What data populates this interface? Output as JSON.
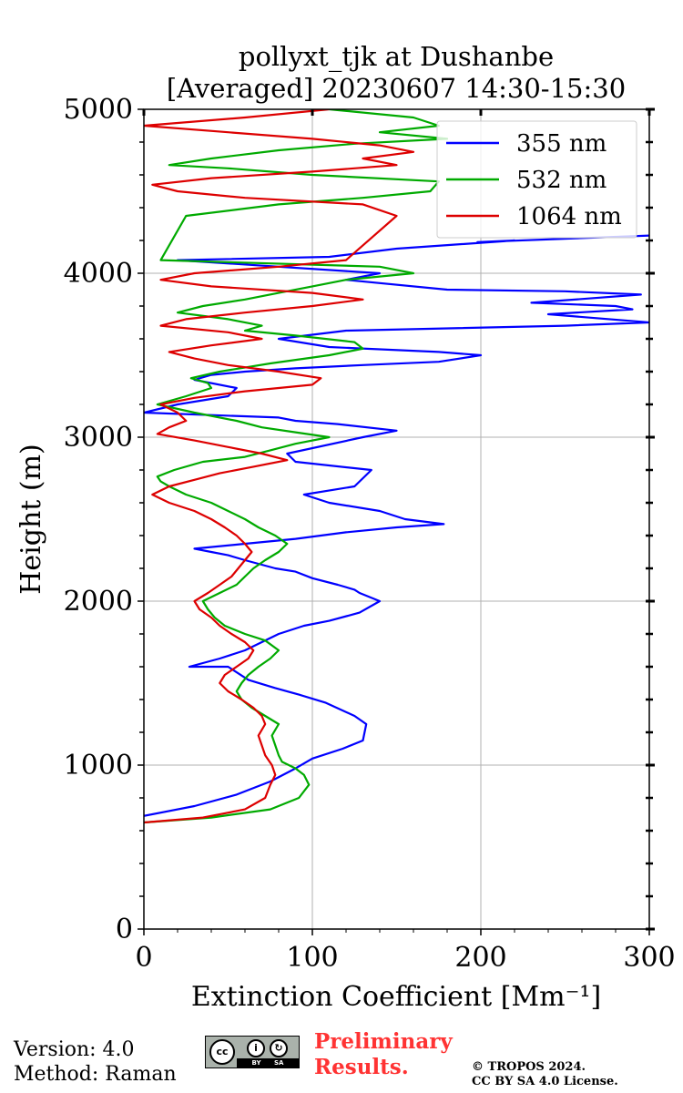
{
  "chart_data": {
    "type": "line",
    "title_line1": "pollyxt_tjk at Dushanbe",
    "title_line2": "[Averaged] 20230607 14:30-15:30",
    "xlabel": "Extinction Coefficient [Mm⁻¹]",
    "ylabel": "Height (m)",
    "xlim": [
      0,
      300
    ],
    "ylim": [
      0,
      5000
    ],
    "xticks": [
      0,
      100,
      200,
      300
    ],
    "yticks": [
      0,
      1000,
      2000,
      3000,
      4000,
      5000
    ],
    "grid": true,
    "legend_position": "top-right",
    "series": [
      {
        "name": "355 nm",
        "color": "#0000ff",
        "x": [
          0,
          30,
          55,
          75,
          90,
          100,
          118,
          130,
          132,
          125,
          108,
          92,
          78,
          62,
          50,
          27,
          45,
          60,
          70,
          80,
          95,
          110,
          128,
          140,
          128,
          125,
          115,
          100,
          90,
          78,
          60,
          50,
          40,
          30,
          60,
          90,
          120,
          150,
          178,
          155,
          140,
          110,
          95,
          125,
          135,
          90,
          85,
          130,
          150,
          115,
          90,
          80,
          0,
          20,
          50,
          55,
          30,
          40,
          60,
          90,
          130,
          175,
          200,
          175,
          110,
          80,
          120,
          250,
          300,
          240,
          290,
          280,
          230,
          295,
          250,
          180,
          120,
          140,
          20,
          110,
          150,
          220,
          198,
          300
        ],
        "y": [
          690,
          750,
          820,
          900,
          980,
          1040,
          1100,
          1150,
          1250,
          1300,
          1380,
          1430,
          1470,
          1520,
          1600,
          1600,
          1650,
          1700,
          1750,
          1800,
          1850,
          1880,
          1930,
          2000,
          2050,
          2070,
          2100,
          2140,
          2180,
          2200,
          2250,
          2280,
          2300,
          2320,
          2350,
          2380,
          2420,
          2450,
          2470,
          2500,
          2550,
          2600,
          2650,
          2700,
          2800,
          2850,
          2900,
          3000,
          3040,
          3080,
          3100,
          3120,
          3150,
          3200,
          3250,
          3300,
          3350,
          3380,
          3400,
          3420,
          3440,
          3460,
          3500,
          3520,
          3550,
          3600,
          3650,
          3680,
          3700,
          3750,
          3780,
          3800,
          3820,
          3870,
          3890,
          3900,
          3960,
          4000,
          4080,
          4100,
          4150,
          4200,
          4190,
          4230
        ]
      },
      {
        "name": "532 nm",
        "color": "#00aa00",
        "x": [
          0,
          40,
          75,
          92,
          98,
          95,
          90,
          82,
          80,
          78,
          76,
          80,
          72,
          64,
          58,
          55,
          58,
          62,
          68,
          75,
          80,
          72,
          60,
          48,
          42,
          38,
          35,
          45,
          55,
          60,
          65,
          72,
          80,
          85,
          78,
          68,
          60,
          50,
          40,
          25,
          15,
          10,
          8,
          18,
          35,
          60,
          75,
          90,
          110,
          90,
          70,
          55,
          30,
          8,
          25,
          40,
          38,
          28,
          45,
          75,
          110,
          130,
          125,
          90,
          60,
          70,
          50,
          20,
          35,
          60,
          80,
          100,
          120,
          160,
          140,
          10,
          25,
          80,
          130,
          170,
          175,
          100,
          50,
          15,
          40,
          80,
          125,
          180,
          140,
          175,
          160,
          110
        ],
        "y": [
          650,
          680,
          730,
          800,
          880,
          940,
          980,
          1020,
          1060,
          1120,
          1180,
          1250,
          1300,
          1350,
          1400,
          1450,
          1500,
          1550,
          1600,
          1650,
          1700,
          1760,
          1800,
          1850,
          1900,
          1950,
          2000,
          2050,
          2100,
          2150,
          2200,
          2250,
          2300,
          2350,
          2400,
          2450,
          2500,
          2550,
          2600,
          2650,
          2700,
          2730,
          2760,
          2800,
          2850,
          2880,
          2920,
          2960,
          3000,
          3030,
          3060,
          3100,
          3150,
          3200,
          3250,
          3300,
          3330,
          3360,
          3400,
          3450,
          3500,
          3540,
          3580,
          3620,
          3650,
          3680,
          3720,
          3760,
          3800,
          3840,
          3880,
          3920,
          3960,
          4000,
          4040,
          4080,
          4350,
          4420,
          4460,
          4500,
          4560,
          4600,
          4640,
          4660,
          4700,
          4750,
          4790,
          4820,
          4860,
          4900,
          4950,
          5000
        ]
      },
      {
        "name": "1064 nm",
        "color": "#dd0000",
        "x": [
          0,
          35,
          60,
          72,
          75,
          78,
          76,
          72,
          70,
          68,
          72,
          70,
          65,
          58,
          50,
          45,
          48,
          55,
          62,
          65,
          60,
          52,
          45,
          40,
          33,
          30,
          38,
          45,
          52,
          56,
          60,
          64,
          60,
          55,
          48,
          40,
          30,
          15,
          5,
          15,
          30,
          45,
          65,
          85,
          70,
          50,
          30,
          8,
          15,
          25,
          20,
          10,
          30,
          60,
          100,
          105,
          80,
          50,
          30,
          15,
          40,
          70,
          50,
          10,
          25,
          60,
          100,
          130,
          100,
          40,
          10,
          30,
          80,
          120,
          150,
          130,
          60,
          20,
          5,
          40,
          100,
          150,
          130,
          160,
          140,
          100,
          50,
          0,
          60,
          110
        ],
        "y": [
          650,
          680,
          730,
          800,
          880,
          940,
          1000,
          1060,
          1120,
          1180,
          1250,
          1300,
          1350,
          1400,
          1450,
          1500,
          1550,
          1600,
          1650,
          1700,
          1750,
          1800,
          1850,
          1900,
          1950,
          2000,
          2050,
          2100,
          2150,
          2200,
          2250,
          2300,
          2350,
          2400,
          2450,
          2500,
          2550,
          2600,
          2650,
          2700,
          2740,
          2780,
          2820,
          2860,
          2900,
          2940,
          2980,
          3020,
          3060,
          3100,
          3150,
          3200,
          3240,
          3280,
          3320,
          3360,
          3400,
          3440,
          3480,
          3520,
          3560,
          3600,
          3640,
          3680,
          3720,
          3760,
          3800,
          3840,
          3880,
          3920,
          3960,
          4000,
          4040,
          4080,
          4350,
          4420,
          4460,
          4500,
          4540,
          4580,
          4620,
          4660,
          4700,
          4740,
          4780,
          4820,
          4860,
          4900,
          4950,
          5000
        ]
      }
    ]
  },
  "footer": {
    "version": "Version: 4.0",
    "method": "Method: Raman",
    "preliminary_line1": "Preliminary",
    "preliminary_line2": "Results.",
    "copyright_line1": "© TROPOS 2024.",
    "copyright_line2": "CC BY SA 4.0 License.",
    "license_badge_text": "BY SA"
  }
}
